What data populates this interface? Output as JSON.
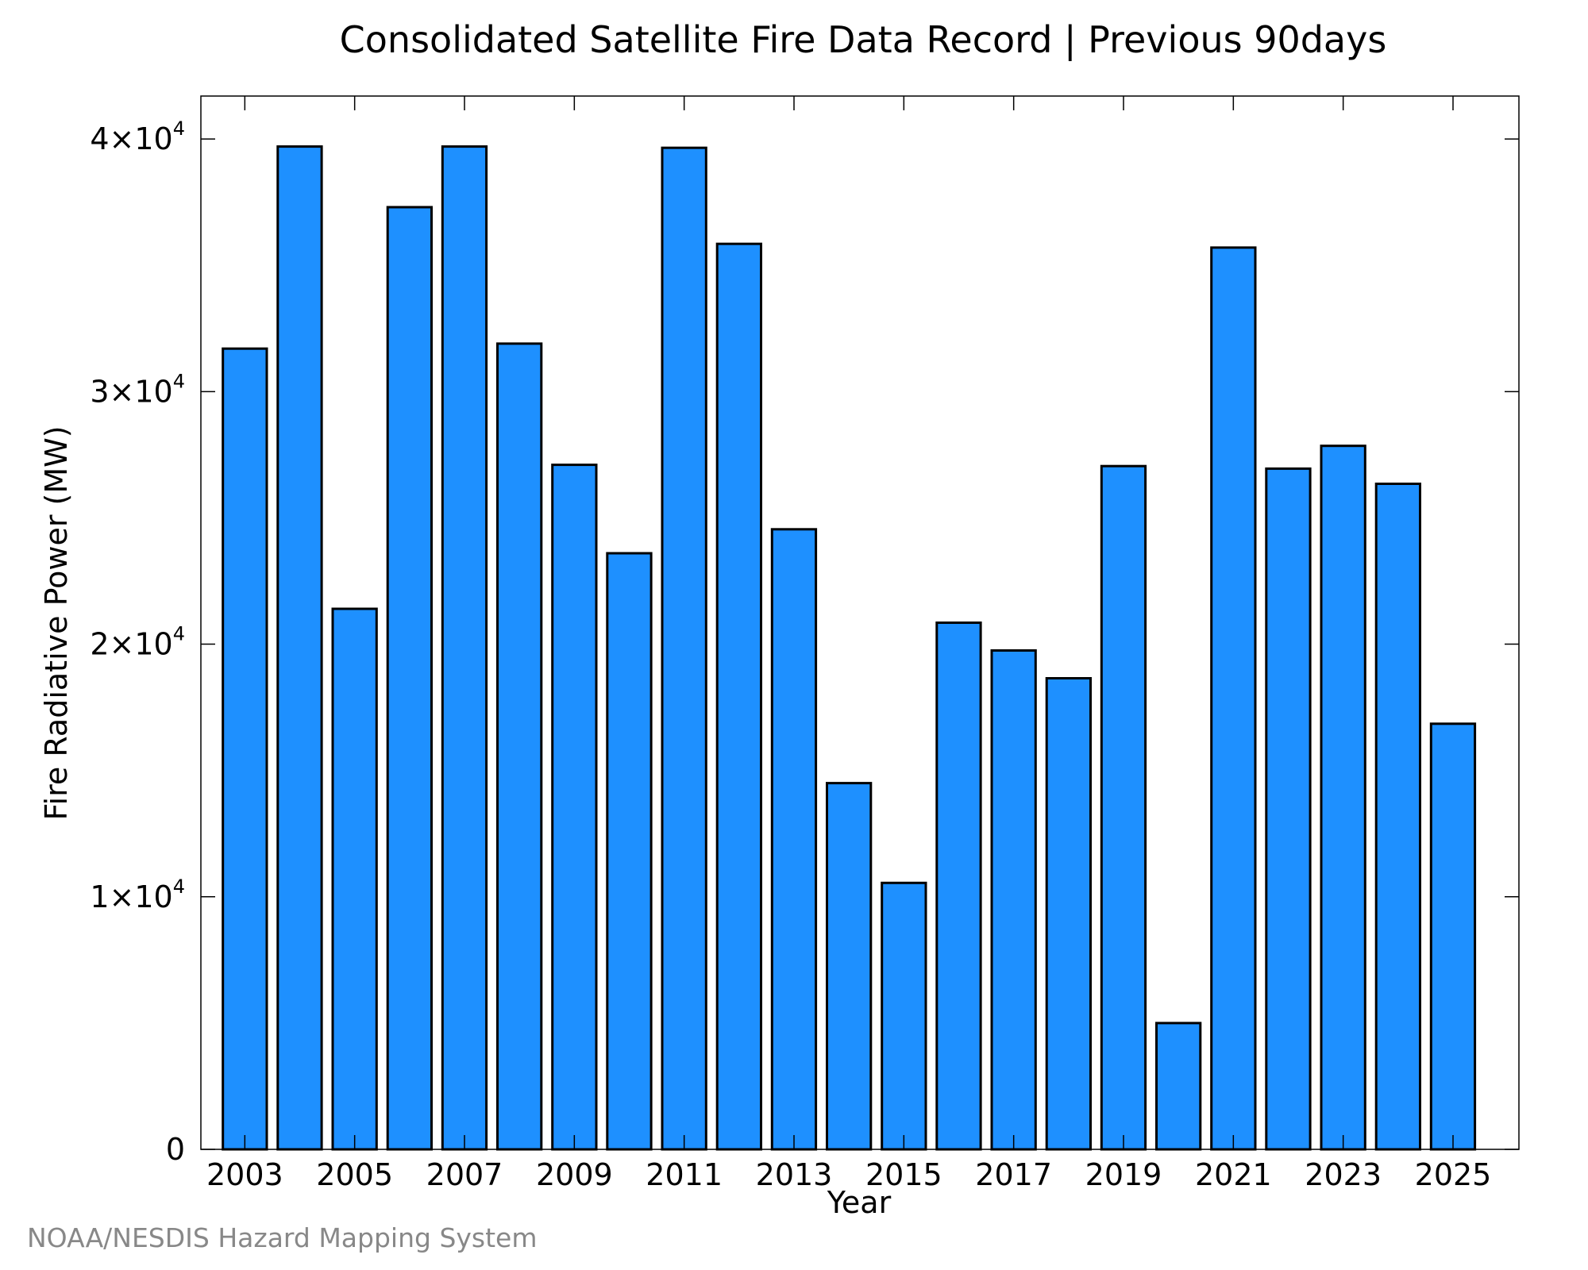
{
  "chart_data": {
    "type": "bar",
    "title": "Consolidated Satellite Fire Data Record | Previous 90days",
    "xlabel": "Year",
    "ylabel": "Fire Radiative Power (MW)",
    "categories": [
      "2003",
      "2004",
      "2005",
      "2006",
      "2007",
      "2008",
      "2009",
      "2010",
      "2011",
      "2012",
      "2013",
      "2014",
      "2015",
      "2016",
      "2017",
      "2018",
      "2019",
      "2020",
      "2021",
      "2022",
      "2023",
      "2024",
      "2025"
    ],
    "values": [
      31700,
      39700,
      21400,
      37300,
      39700,
      31900,
      27100,
      23600,
      39650,
      35850,
      24550,
      14500,
      10550,
      20850,
      19750,
      18650,
      27050,
      5000,
      35700,
      26950,
      27850,
      26350,
      16850
    ],
    "xtick_labels": [
      "2003",
      "2005",
      "2007",
      "2009",
      "2011",
      "2013",
      "2015",
      "2017",
      "2019",
      "2021",
      "2023",
      "2025"
    ],
    "yticks": [
      {
        "value": 0,
        "base": "0",
        "exp": ""
      },
      {
        "value": 10000,
        "base": "1×10",
        "exp": "4"
      },
      {
        "value": 20000,
        "base": "2×10",
        "exp": "4"
      },
      {
        "value": 30000,
        "base": "3×10",
        "exp": "4"
      },
      {
        "value": 40000,
        "base": "4×10",
        "exp": "4"
      }
    ],
    "ylim": [
      0,
      41700
    ],
    "xlim": [
      2002.2,
      2026.2
    ],
    "grid": false,
    "legend": "none",
    "colors": {
      "bar_fill": "#1e90ff",
      "bar_stroke": "#000000"
    },
    "credit": "NOAA/NESDIS Hazard Mapping System"
  }
}
